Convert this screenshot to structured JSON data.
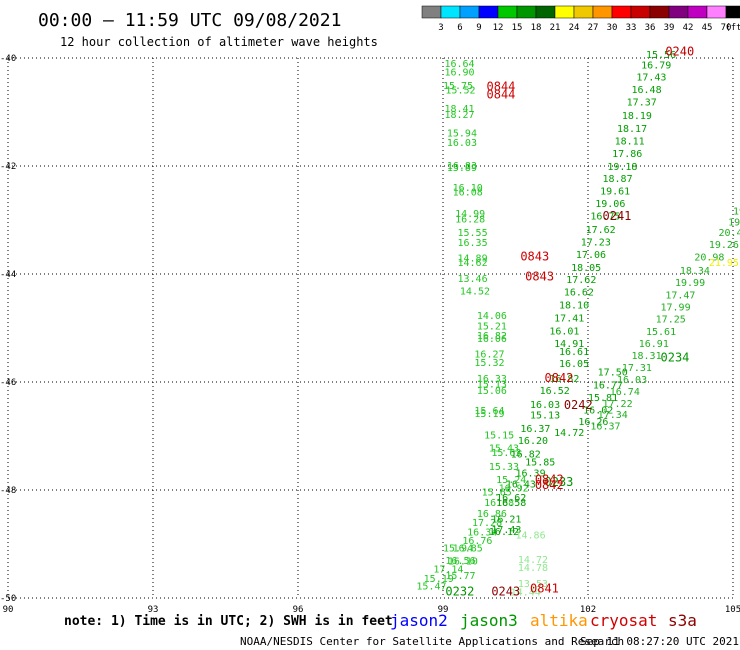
{
  "header": {
    "title": "00:00 – 11:59 UTC 09/08/2021",
    "subtitle": "12 hour collection of altimeter wave heights"
  },
  "colorbar": {
    "labels": [
      "3",
      "6",
      "9",
      "12",
      "15",
      "18",
      "21",
      "24",
      "27",
      "30",
      "33",
      "36",
      "39",
      "42",
      "45",
      "70"
    ],
    "unit": "(ft)",
    "colors": [
      "#808080",
      "#00e5ff",
      "#00a0ff",
      "#0000ff",
      "#00c800",
      "#009600",
      "#006400",
      "#ffff00",
      "#f0c800",
      "#ff9600",
      "#ff0000",
      "#c80000",
      "#8b0000",
      "#800080",
      "#c000c0",
      "#ff80ff",
      "#000000"
    ]
  },
  "footer": {
    "note": "note: 1) Time is in UTC; 2) SWH is in feet",
    "satellites": [
      {
        "name": "jason2",
        "color": "#0000ff"
      },
      {
        "name": "jason3",
        "color": "#009600"
      },
      {
        "name": "altika",
        "color": "#ff9600"
      },
      {
        "name": "cryosat",
        "color": "#d00000"
      },
      {
        "name": "s3a",
        "color": "#8b0000"
      }
    ],
    "credit": "NOAA/NESDIS Center for Satellite Applications and Research",
    "timestamp": "Sep 11 08:27:20 UTC 2021"
  },
  "chart_data": {
    "type": "scatter",
    "title": "",
    "xlabel": "",
    "ylabel": "",
    "xlim": [
      90,
      105
    ],
    "ylim": [
      -50,
      -40
    ],
    "xticks": [
      "90",
      "93",
      "96",
      "99",
      "102",
      "105"
    ],
    "yticks": [
      "-40",
      "-42",
      "-44",
      "-46",
      "-48",
      "-50"
    ],
    "grid": true,
    "series": [
      {
        "name": "track-a",
        "color": "#22c822",
        "points": [
          {
            "lon": 99.03,
            "lat": -40.17,
            "v": "16.64"
          },
          {
            "lon": 99.03,
            "lat": -40.32,
            "v": "16.90"
          },
          {
            "lon": 99.0,
            "lat": -40.57,
            "v": "15.75"
          },
          {
            "lon": 99.05,
            "lat": -40.66,
            "v": "15.52"
          },
          {
            "lon": 99.03,
            "lat": -41.0,
            "v": "18.41"
          },
          {
            "lon": 99.03,
            "lat": -41.11,
            "v": "18.27"
          },
          {
            "lon": 99.08,
            "lat": -41.45,
            "v": "15.94"
          },
          {
            "lon": 99.08,
            "lat": -41.63,
            "v": "16.03"
          },
          {
            "lon": 99.08,
            "lat": -42.06,
            "v": "16.83"
          },
          {
            "lon": 99.08,
            "lat": -42.09,
            "v": "15.89"
          },
          {
            "lon": 99.2,
            "lat": -42.46,
            "v": "16.10"
          },
          {
            "lon": 99.2,
            "lat": -42.55,
            "v": "16.08"
          },
          {
            "lon": 99.25,
            "lat": -42.94,
            "v": "14.99"
          },
          {
            "lon": 99.25,
            "lat": -43.05,
            "v": "16.28"
          },
          {
            "lon": 99.3,
            "lat": -43.3,
            "v": "15.55"
          },
          {
            "lon": 99.3,
            "lat": -43.48,
            "v": "16.35"
          },
          {
            "lon": 99.3,
            "lat": -43.77,
            "v": "14.89"
          },
          {
            "lon": 99.3,
            "lat": -43.85,
            "v": "14.62"
          },
          {
            "lon": 99.3,
            "lat": -44.15,
            "v": "13.46"
          },
          {
            "lon": 99.35,
            "lat": -44.38,
            "v": "14.52"
          },
          {
            "lon": 99.7,
            "lat": -44.83,
            "v": "14.06"
          },
          {
            "lon": 99.7,
            "lat": -45.03,
            "v": "15.21"
          },
          {
            "lon": 99.7,
            "lat": -45.2,
            "v": "16.82"
          },
          {
            "lon": 99.7,
            "lat": -45.26,
            "v": "16.06"
          },
          {
            "lon": 99.65,
            "lat": -45.55,
            "v": "16.27"
          },
          {
            "lon": 99.65,
            "lat": -45.7,
            "v": "15.32"
          },
          {
            "lon": 99.7,
            "lat": -46.0,
            "v": "16.33"
          },
          {
            "lon": 99.7,
            "lat": -46.1,
            "v": "15.13"
          },
          {
            "lon": 99.7,
            "lat": -46.22,
            "v": "15.06"
          },
          {
            "lon": 99.65,
            "lat": -46.59,
            "v": "15.64"
          },
          {
            "lon": 99.65,
            "lat": -46.65,
            "v": "15.19"
          },
          {
            "lon": 99.85,
            "lat": -47.05,
            "v": "15.15"
          },
          {
            "lon": 99.95,
            "lat": -47.29,
            "v": "15.43"
          },
          {
            "lon": 100.0,
            "lat": -47.37,
            "v": "15.63"
          },
          {
            "lon": 99.95,
            "lat": -47.63,
            "v": "15.33"
          },
          {
            "lon": 100.1,
            "lat": -47.87,
            "v": "15.24"
          },
          {
            "lon": 99.8,
            "lat": -48.1,
            "v": "15.65"
          },
          {
            "lon": 100.15,
            "lat": -48.03,
            "v": "16.92"
          },
          {
            "lon": 99.85,
            "lat": -48.3,
            "v": "16.88"
          },
          {
            "lon": 99.7,
            "lat": -48.5,
            "v": "16.86"
          },
          {
            "lon": 99.6,
            "lat": -48.67,
            "v": "17.28"
          },
          {
            "lon": 99.5,
            "lat": -48.84,
            "v": "16.34"
          },
          {
            "lon": 99.4,
            "lat": -49.0,
            "v": "16.76"
          },
          {
            "lon": 99.2,
            "lat": -49.14,
            "v": "16.85"
          },
          {
            "lon": 99.05,
            "lat": -49.37,
            "v": "16.56"
          },
          {
            "lon": 98.8,
            "lat": -49.53,
            "v": "17.14"
          },
          {
            "lon": 98.6,
            "lat": -49.7,
            "v": "15.19"
          },
          {
            "lon": 98.45,
            "lat": -49.84,
            "v": "15.47"
          },
          {
            "lon": 99.0,
            "lat": -49.14,
            "v": "15.94"
          },
          {
            "lon": 99.1,
            "lat": -49.38,
            "v": "16.10"
          },
          {
            "lon": 99.05,
            "lat": -49.65,
            "v": "15.77"
          }
        ]
      },
      {
        "name": "track-b",
        "color": "#00a000",
        "points": [
          {
            "lon": 101.4,
            "lat": -45.5,
            "v": "16.61"
          },
          {
            "lon": 101.4,
            "lat": -45.72,
            "v": "16.05"
          },
          {
            "lon": 101.2,
            "lat": -46.0,
            "v": "16.82"
          },
          {
            "lon": 101.0,
            "lat": -46.22,
            "v": "16.52"
          },
          {
            "lon": 100.8,
            "lat": -46.48,
            "v": "16.03"
          },
          {
            "lon": 100.8,
            "lat": -46.68,
            "v": "15.13"
          },
          {
            "lon": 100.6,
            "lat": -46.93,
            "v": "16.37"
          },
          {
            "lon": 100.55,
            "lat": -47.15,
            "v": "16.20"
          },
          {
            "lon": 100.4,
            "lat": -47.4,
            "v": "16.82"
          },
          {
            "lon": 100.7,
            "lat": -47.55,
            "v": "15.85"
          },
          {
            "lon": 100.5,
            "lat": -47.75,
            "v": "16.39"
          },
          {
            "lon": 100.3,
            "lat": -47.95,
            "v": "16.43"
          },
          {
            "lon": 100.1,
            "lat": -48.2,
            "v": "16.62"
          },
          {
            "lon": 100.0,
            "lat": -48.6,
            "v": "16.21"
          },
          {
            "lon": 100.0,
            "lat": -48.8,
            "v": "17.43"
          },
          {
            "lon": 100.1,
            "lat": -48.3,
            "v": "16.58"
          },
          {
            "lon": 99.95,
            "lat": -48.83,
            "v": "16.12"
          }
        ]
      },
      {
        "name": "track-c",
        "color": "#00a000",
        "points": [
          {
            "lon": 103.2,
            "lat": -40.0,
            "v": "15.56"
          },
          {
            "lon": 103.1,
            "lat": -40.19,
            "v": "16.79"
          },
          {
            "lon": 103.0,
            "lat": -40.42,
            "v": "17.43"
          },
          {
            "lon": 102.9,
            "lat": -40.65,
            "v": "16.48"
          },
          {
            "lon": 102.8,
            "lat": -40.88,
            "v": "17.37"
          },
          {
            "lon": 102.7,
            "lat": -41.13,
            "v": "18.19"
          },
          {
            "lon": 102.6,
            "lat": -41.37,
            "v": "18.17"
          },
          {
            "lon": 102.55,
            "lat": -41.6,
            "v": "18.11"
          },
          {
            "lon": 102.5,
            "lat": -41.83,
            "v": "17.86"
          },
          {
            "lon": 102.4,
            "lat": -42.07,
            "v": "19.18"
          },
          {
            "lon": 102.3,
            "lat": -42.3,
            "v": "18.87"
          },
          {
            "lon": 102.25,
            "lat": -42.53,
            "v": "19.61"
          },
          {
            "lon": 102.15,
            "lat": -42.76,
            "v": "19.06"
          },
          {
            "lon": 102.05,
            "lat": -42.99,
            "v": "16.75"
          },
          {
            "lon": 101.95,
            "lat": -43.24,
            "v": "17.62"
          },
          {
            "lon": 101.85,
            "lat": -43.47,
            "v": "17.23"
          },
          {
            "lon": 101.75,
            "lat": -43.7,
            "v": "17.06"
          },
          {
            "lon": 101.65,
            "lat": -43.94,
            "v": "18.05"
          },
          {
            "lon": 101.55,
            "lat": -44.17,
            "v": "17.62"
          },
          {
            "lon": 101.5,
            "lat": -44.4,
            "v": "16.62"
          },
          {
            "lon": 101.4,
            "lat": -44.64,
            "v": "18.10"
          },
          {
            "lon": 101.3,
            "lat": -44.88,
            "v": "17.41"
          },
          {
            "lon": 101.2,
            "lat": -45.12,
            "v": "16.01"
          },
          {
            "lon": 101.3,
            "lat": -45.35,
            "v": "14.91"
          },
          {
            "lon": 101.8,
            "lat": -46.8,
            "v": "16.26"
          },
          {
            "lon": 101.9,
            "lat": -46.58,
            "v": "16.02"
          },
          {
            "lon": 102.0,
            "lat": -46.35,
            "v": "15.81"
          },
          {
            "lon": 102.1,
            "lat": -46.12,
            "v": "16.77"
          },
          {
            "lon": 102.2,
            "lat": -45.88,
            "v": "17.50"
          },
          {
            "lon": 101.3,
            "lat": -47.0,
            "v": "14.72"
          }
        ]
      },
      {
        "name": "track-d",
        "color": "#20b020",
        "points": [
          {
            "lon": 105.0,
            "lat": -42.9,
            "v": "19"
          },
          {
            "lon": 104.9,
            "lat": -43.1,
            "v": "19.0"
          },
          {
            "lon": 104.7,
            "lat": -43.3,
            "v": "20.4"
          },
          {
            "lon": 104.5,
            "lat": -43.52,
            "v": "19.26"
          },
          {
            "lon": 104.2,
            "lat": -43.75,
            "v": "20.98"
          },
          {
            "lon": 103.9,
            "lat": -44.0,
            "v": "18.34"
          },
          {
            "lon": 103.8,
            "lat": -44.22,
            "v": "19.99"
          },
          {
            "lon": 103.6,
            "lat": -44.45,
            "v": "17.47"
          },
          {
            "lon": 103.5,
            "lat": -44.68,
            "v": "17.99"
          },
          {
            "lon": 103.4,
            "lat": -44.9,
            "v": "17.25"
          },
          {
            "lon": 103.2,
            "lat": -45.13,
            "v": "15.61"
          },
          {
            "lon": 103.05,
            "lat": -45.35,
            "v": "16.91"
          },
          {
            "lon": 102.9,
            "lat": -45.57,
            "v": "18.31"
          },
          {
            "lon": 102.7,
            "lat": -45.8,
            "v": "17.31"
          },
          {
            "lon": 102.6,
            "lat": -46.02,
            "v": "16.03"
          },
          {
            "lon": 102.45,
            "lat": -46.24,
            "v": "16.74"
          },
          {
            "lon": 102.3,
            "lat": -46.46,
            "v": "17.22"
          },
          {
            "lon": 102.2,
            "lat": -46.67,
            "v": "17.34"
          },
          {
            "lon": 102.05,
            "lat": -46.88,
            "v": "16.37"
          }
        ]
      },
      {
        "name": "track-e",
        "color": "#eeee00",
        "points": [
          {
            "lon": 104.5,
            "lat": -43.85,
            "v": "21.95"
          }
        ]
      },
      {
        "name": "track-f",
        "color": "#90e890",
        "points": [
          {
            "lon": 100.55,
            "lat": -49.35,
            "v": "14.72"
          },
          {
            "lon": 100.55,
            "lat": -49.5,
            "v": "14.78"
          },
          {
            "lon": 100.55,
            "lat": -49.8,
            "v": "13.53"
          },
          {
            "lon": 100.4,
            "lat": -49.95,
            "v": "14.44"
          },
          {
            "lon": 100.5,
            "lat": -48.9,
            "v": "14.86"
          }
        ]
      }
    ],
    "time_labels": [
      {
        "lon": 103.6,
        "lat": -39.95,
        "v": "0240",
        "color": "#c00000"
      },
      {
        "lon": 99.9,
        "lat": -40.6,
        "v": "0844",
        "color": "#d00000"
      },
      {
        "lon": 99.9,
        "lat": -40.75,
        "v": "0844",
        "color": "#d00000"
      },
      {
        "lon": 102.3,
        "lat": -43.0,
        "v": "0241",
        "color": "#8b0000"
      },
      {
        "lon": 100.6,
        "lat": -43.75,
        "v": "0843",
        "color": "#d00000"
      },
      {
        "lon": 100.7,
        "lat": -44.12,
        "v": "0843",
        "color": "#d00000"
      },
      {
        "lon": 103.5,
        "lat": -45.62,
        "v": "0234",
        "color": "#009600"
      },
      {
        "lon": 101.1,
        "lat": -46.0,
        "v": "0842",
        "color": "#d00000"
      },
      {
        "lon": 101.5,
        "lat": -46.5,
        "v": "0242",
        "color": "#8b0000"
      },
      {
        "lon": 101.1,
        "lat": -47.93,
        "v": "0233",
        "color": "#009600"
      },
      {
        "lon": 100.9,
        "lat": -47.88,
        "v": "0842",
        "color": "#d00000"
      },
      {
        "lon": 100.9,
        "lat": -47.98,
        "v": "0842",
        "color": "#d00000"
      },
      {
        "lon": 99.05,
        "lat": -49.95,
        "v": "0232",
        "color": "#009600"
      },
      {
        "lon": 100.0,
        "lat": -49.95,
        "v": "0243",
        "color": "#8b0000"
      },
      {
        "lon": 100.8,
        "lat": -49.9,
        "v": "0841",
        "color": "#d00000"
      }
    ]
  }
}
